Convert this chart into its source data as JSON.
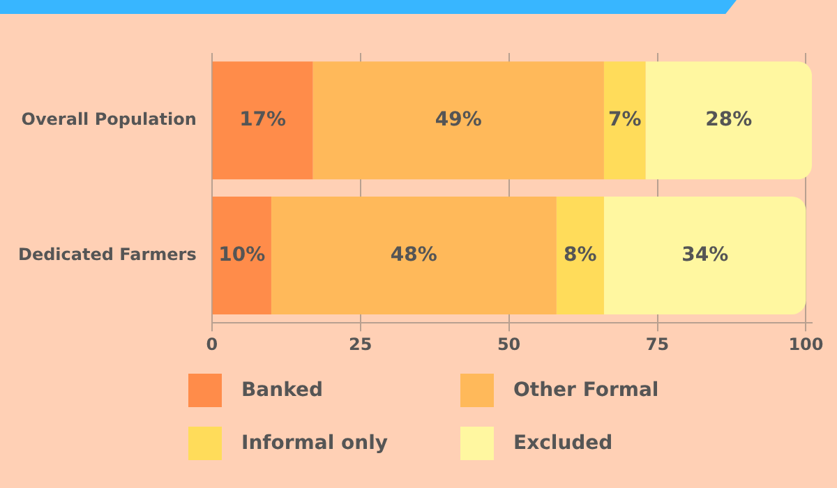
{
  "chart_data": {
    "type": "bar",
    "orientation": "horizontal",
    "stacked": true,
    "categories": [
      "Overall Population",
      "Dedicated Farmers"
    ],
    "series": [
      {
        "name": "Banked",
        "color": "#ff8c4a",
        "values": [
          17,
          10
        ],
        "value_labels": [
          "17%",
          "10%"
        ]
      },
      {
        "name": "Other Formal",
        "color": "#ffb95a",
        "values": [
          49,
          48
        ],
        "value_labels": [
          "49%",
          "48%"
        ]
      },
      {
        "name": "Informal only",
        "color": "#ffdc5a",
        "values": [
          7,
          8
        ],
        "value_labels": [
          "7%",
          "8%"
        ]
      },
      {
        "name": "Excluded",
        "color": "#fff7a0",
        "values": [
          28,
          34
        ],
        "value_labels": [
          "28%",
          "34%"
        ]
      }
    ],
    "xlim": [
      0,
      101
    ],
    "xticks": [
      0,
      25,
      50,
      75,
      100
    ],
    "grid": "x",
    "legend": "bottom"
  }
}
